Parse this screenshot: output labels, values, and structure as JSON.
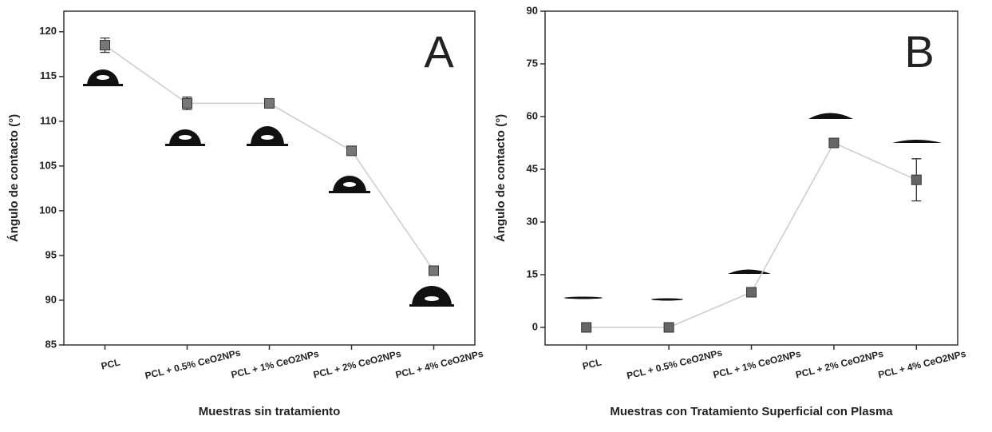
{
  "chart_data": [
    {
      "type": "line",
      "panel_label": "A",
      "xlabel": "Muestras sin tratamiento",
      "ylabel": "Ángulo de contacto (°)",
      "categories": [
        "PCL",
        "PCL + 0.5% CeO2NPs",
        "PCL + 1% CeO2NPs",
        "PCL + 2% CeO2NPs",
        "PCL + 4% CeO2NPs"
      ],
      "values": [
        118.5,
        112,
        112,
        106.7,
        93.3
      ],
      "errors": [
        0.8,
        0.7,
        0.5,
        0.5,
        0.5
      ],
      "color": "#777777",
      "line_color": "#cccccc",
      "ylim": [
        85,
        122.3
      ],
      "yticks": [
        85,
        90,
        95,
        100,
        105,
        110,
        115,
        120
      ]
    },
    {
      "type": "line",
      "panel_label": "B",
      "xlabel": "Muestras con Tratamiento Superficial con Plasma",
      "ylabel": "Ángulo de contacto (°)",
      "categories": [
        "PCL",
        "PCL + 0.5% CeO2NPs",
        "PCL + 1% CeO2NPs",
        "PCL + 2% CeO2NPs",
        "PCL + 4% CeO2NPs"
      ],
      "values": [
        0,
        0,
        10,
        52.5,
        42
      ],
      "errors": [
        0,
        0,
        0.8,
        1,
        6
      ],
      "color": "#666666",
      "line_color": "#cccccc",
      "ylim": [
        -5,
        90
      ],
      "yticks": [
        0,
        15,
        30,
        45,
        60,
        75,
        90
      ]
    }
  ]
}
